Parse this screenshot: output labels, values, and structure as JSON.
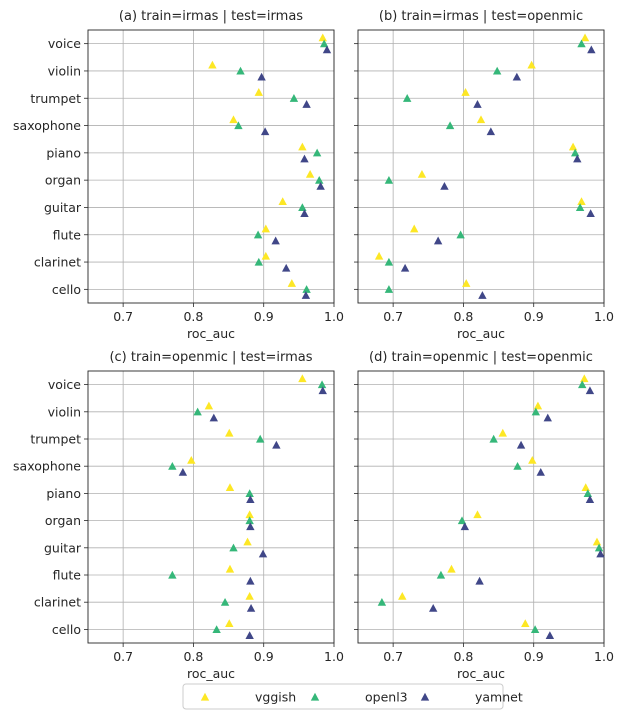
{
  "chart_data": {
    "type": "scatter",
    "orientation": "horizontal",
    "categories": [
      "voice",
      "violin",
      "trumpet",
      "saxophone",
      "piano",
      "organ",
      "guitar",
      "flute",
      "clarinet",
      "cello"
    ],
    "xlabel": "roc_auc",
    "xlim": [
      0.65,
      1.0
    ],
    "xticks": [
      "0.7",
      "0.8",
      "0.9",
      "1.0"
    ],
    "grid": true,
    "marker": "triangle",
    "legend_position": "bottom",
    "series_meta": [
      {
        "name": "vggish",
        "color": "#fde725"
      },
      {
        "name": "openl3",
        "color": "#35b779"
      },
      {
        "name": "yamnet",
        "color": "#404788"
      }
    ],
    "panels": [
      {
        "title": "(a) train=irmas | test=irmas",
        "series": [
          {
            "name": "vggish",
            "values": [
              0.984,
              0.827,
              0.893,
              0.857,
              0.955,
              0.966,
              0.927,
              0.903,
              0.903,
              0.94
            ]
          },
          {
            "name": "openl3",
            "values": [
              0.986,
              0.867,
              0.943,
              0.864,
              0.976,
              0.979,
              0.955,
              0.892,
              0.893,
              0.961
            ]
          },
          {
            "name": "yamnet",
            "values": [
              0.99,
              0.897,
              0.961,
              0.902,
              0.958,
              0.981,
              0.958,
              0.917,
              0.932,
              0.96
            ]
          }
        ]
      },
      {
        "title": "(b) train=irmas | test=openmic",
        "series": [
          {
            "name": "vggish",
            "values": [
              0.973,
              0.897,
              0.803,
              0.825,
              0.956,
              0.741,
              0.968,
              0.73,
              0.68,
              0.804
            ]
          },
          {
            "name": "openl3",
            "values": [
              0.968,
              0.848,
              0.72,
              0.781,
              0.959,
              0.694,
              0.966,
              0.796,
              0.694,
              0.694
            ]
          },
          {
            "name": "yamnet",
            "values": [
              0.982,
              0.876,
              0.82,
              0.839,
              0.962,
              0.773,
              0.981,
              0.764,
              0.717,
              0.827
            ]
          }
        ]
      },
      {
        "title": "(c) train=openmic | test=irmas",
        "series": [
          {
            "name": "vggish",
            "values": [
              0.955,
              0.822,
              0.851,
              0.797,
              0.852,
              0.88,
              0.877,
              0.852,
              0.88,
              0.851
            ]
          },
          {
            "name": "openl3",
            "values": [
              0.983,
              0.806,
              0.895,
              0.77,
              0.88,
              0.88,
              0.857,
              0.77,
              0.845,
              0.833
            ]
          },
          {
            "name": "yamnet",
            "values": [
              0.984,
              0.829,
              0.918,
              0.785,
              0.881,
              0.881,
              0.899,
              0.881,
              0.882,
              0.88
            ]
          }
        ]
      },
      {
        "title": "(d) train=openmic | test=openmic",
        "series": [
          {
            "name": "vggish",
            "values": [
              0.972,
              0.906,
              0.856,
              0.898,
              0.974,
              0.82,
              0.99,
              0.783,
              0.713,
              0.888
            ]
          },
          {
            "name": "openl3",
            "values": [
              0.969,
              0.903,
              0.843,
              0.877,
              0.977,
              0.798,
              0.993,
              0.768,
              0.684,
              0.902
            ]
          },
          {
            "name": "yamnet",
            "values": [
              0.98,
              0.92,
              0.882,
              0.91,
              0.98,
              0.802,
              0.995,
              0.823,
              0.757,
              0.923
            ]
          }
        ]
      }
    ]
  }
}
